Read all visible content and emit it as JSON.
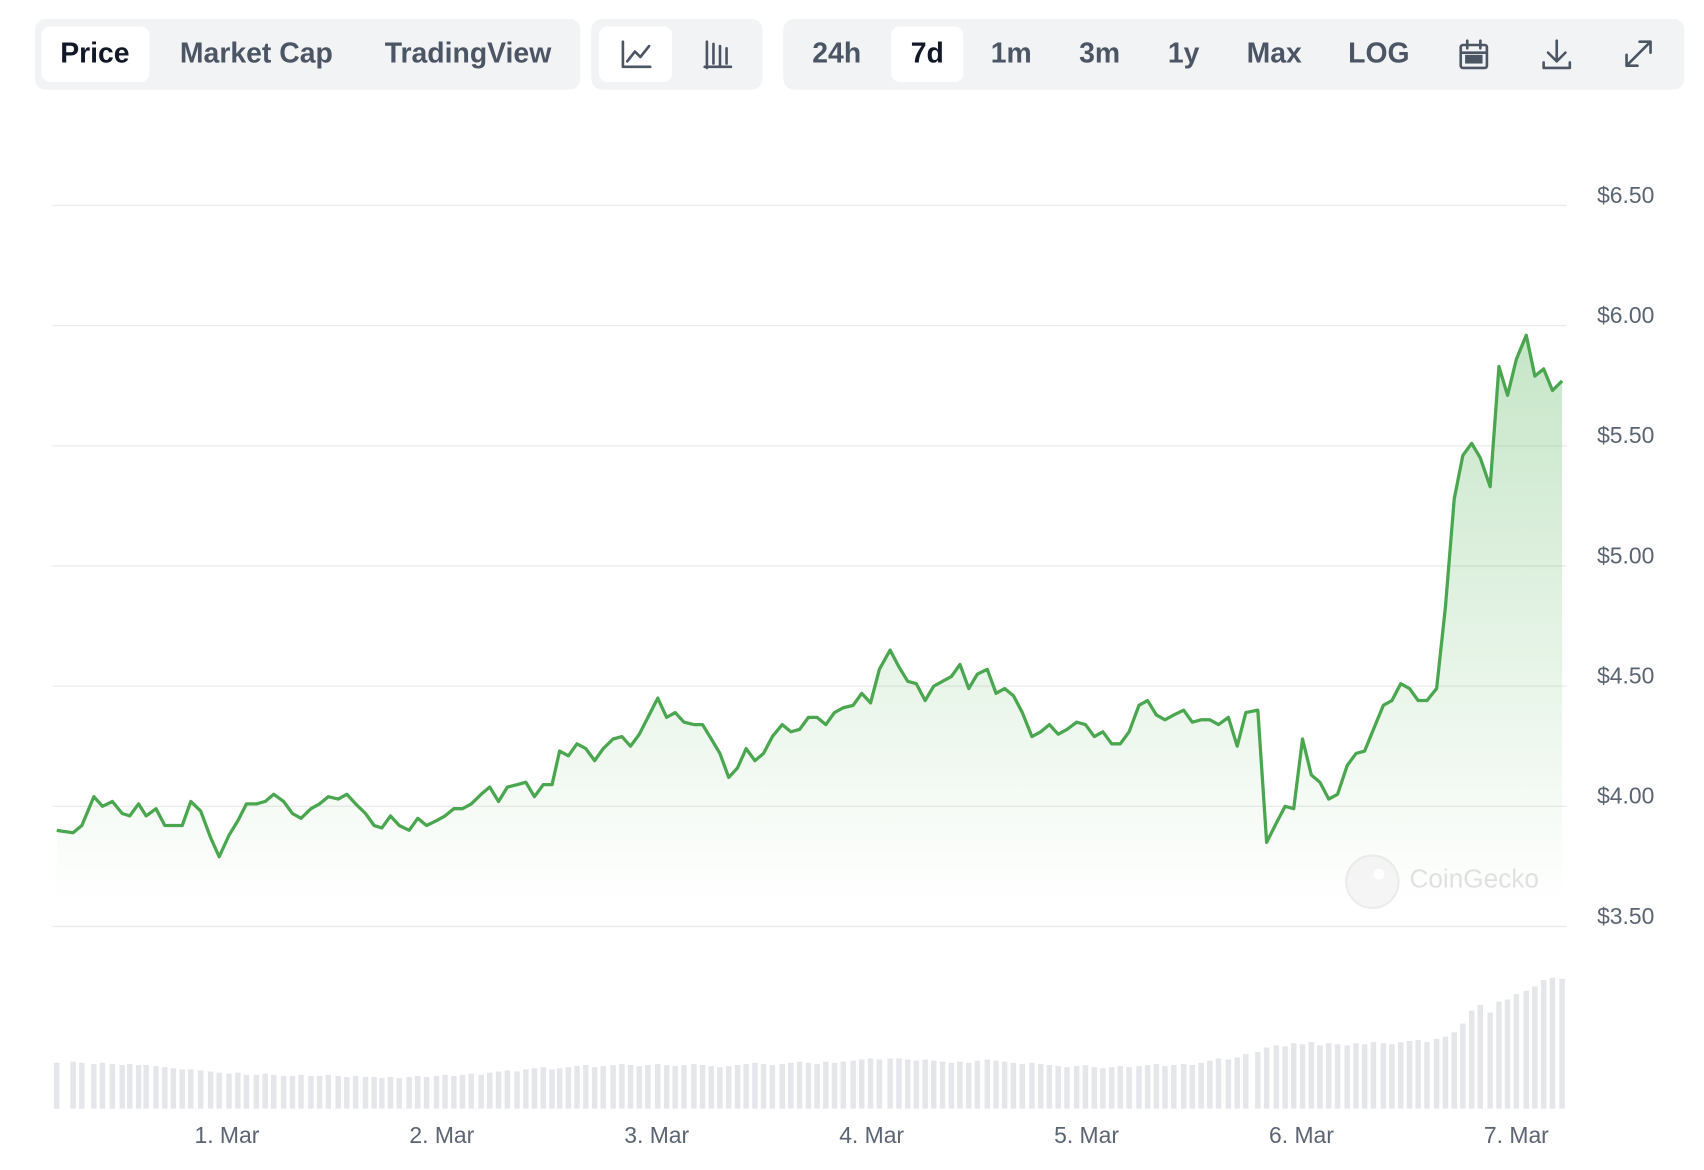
{
  "toolbar": {
    "views": [
      "Price",
      "Market Cap",
      "TradingView"
    ],
    "ranges": [
      "24h",
      "7d",
      "1m",
      "3m",
      "1y",
      "Max",
      "LOG"
    ]
  },
  "watermark": "CoinGecko",
  "chart_data": {
    "type": "line",
    "x": [
      0.208,
      0.284,
      0.325,
      0.381,
      0.421,
      0.467,
      0.513,
      0.548,
      0.589,
      0.624,
      0.67,
      0.711,
      0.751,
      0.792,
      0.832,
      0.878,
      0.924,
      0.964,
      1.01,
      1.051,
      1.091,
      1.137,
      1.178,
      1.218,
      1.264,
      1.305,
      1.345,
      1.391,
      1.431,
      1.472,
      1.518,
      1.558,
      1.599,
      1.645,
      1.685,
      1.721,
      1.761,
      1.802,
      1.848,
      1.888,
      1.929,
      1.975,
      2.015,
      2.056,
      2.096,
      2.137,
      2.183,
      2.223,
      2.264,
      2.305,
      2.35,
      2.391,
      2.431,
      2.472,
      2.513,
      2.548,
      2.589,
      2.629,
      2.67,
      2.711,
      2.751,
      2.797,
      2.838,
      2.878,
      2.919,
      2.959,
      3.005,
      3.046,
      3.086,
      3.127,
      3.173,
      3.213,
      3.254,
      3.294,
      3.335,
      3.376,
      3.416,
      3.457,
      3.497,
      3.538,
      3.584,
      3.624,
      3.665,
      3.706,
      3.746,
      3.787,
      3.827,
      3.868,
      3.914,
      3.954,
      3.995,
      4.036,
      4.086,
      4.127,
      4.168,
      4.208,
      4.249,
      4.289,
      4.33,
      4.371,
      4.411,
      4.452,
      4.492,
      4.538,
      4.579,
      4.619,
      4.66,
      4.701,
      4.746,
      4.787,
      4.827,
      4.868,
      4.909,
      4.954,
      4.995,
      5.036,
      5.076,
      5.117,
      5.157,
      5.198,
      5.244,
      5.284,
      5.325,
      5.365,
      5.406,
      5.452,
      5.492,
      5.533,
      5.574,
      5.614,
      5.66,
      5.701,
      5.741,
      5.797,
      5.838,
      5.883,
      5.924,
      5.964,
      6.005,
      6.046,
      6.086,
      6.127,
      6.168,
      6.213,
      6.254,
      6.294,
      6.335,
      6.381,
      6.421,
      6.462,
      6.503,
      6.543,
      6.584,
      6.629,
      6.67,
      6.711,
      6.751,
      6.792,
      6.832,
      6.878,
      6.919,
      6.959,
      7.0,
      7.046,
      7.086,
      7.127,
      7.168,
      7.213
    ],
    "series": [
      {
        "color": "#4aa64f",
        "values": [
          3.9,
          3.89,
          3.92,
          4.04,
          4.0,
          4.02,
          3.97,
          3.96,
          4.01,
          3.96,
          3.99,
          3.92,
          3.92,
          3.92,
          4.02,
          3.98,
          3.87,
          3.79,
          3.88,
          3.94,
          4.01,
          4.01,
          4.02,
          4.05,
          4.02,
          3.97,
          3.95,
          3.99,
          4.01,
          4.04,
          4.03,
          4.05,
          4.01,
          3.97,
          3.92,
          3.91,
          3.96,
          3.92,
          3.9,
          3.95,
          3.92,
          3.94,
          3.96,
          3.99,
          3.99,
          4.01,
          4.05,
          4.08,
          4.02,
          4.08,
          4.09,
          4.1,
          4.04,
          4.09,
          4.09,
          4.23,
          4.21,
          4.26,
          4.24,
          4.19,
          4.24,
          4.28,
          4.29,
          4.25,
          4.3,
          4.37,
          4.45,
          4.37,
          4.39,
          4.35,
          4.34,
          4.34,
          4.28,
          4.22,
          4.12,
          4.16,
          4.24,
          4.19,
          4.22,
          4.29,
          4.34,
          4.31,
          4.32,
          4.37,
          4.37,
          4.34,
          4.39,
          4.41,
          4.42,
          4.47,
          4.43,
          4.57,
          4.65,
          4.58,
          4.52,
          4.51,
          4.44,
          4.5,
          4.52,
          4.54,
          4.59,
          4.49,
          4.55,
          4.57,
          4.47,
          4.49,
          4.46,
          4.39,
          4.29,
          4.31,
          4.34,
          4.3,
          4.32,
          4.35,
          4.34,
          4.29,
          4.31,
          4.26,
          4.26,
          4.31,
          4.42,
          4.44,
          4.38,
          4.36,
          4.38,
          4.4,
          4.35,
          4.36,
          4.36,
          4.34,
          4.37,
          4.25,
          4.39,
          4.4,
          3.85,
          3.93,
          4.0,
          3.99,
          4.28,
          4.13,
          4.1,
          4.03,
          4.05,
          4.17,
          4.22,
          4.23,
          4.32,
          4.42,
          4.44,
          4.51,
          4.49,
          4.44,
          4.44,
          4.49,
          4.83,
          5.28,
          5.46,
          5.51,
          5.45,
          5.33,
          5.83,
          5.71,
          5.86,
          5.96,
          5.79,
          5.82,
          5.73,
          5.77
        ]
      },
      {
        "type": "bar",
        "axis": "y2",
        "color": "#e4e6ea",
        "values": [
          42,
          43,
          42,
          41,
          42,
          41,
          40,
          41,
          40,
          40,
          39,
          38,
          37,
          36,
          36,
          35,
          34,
          33,
          32,
          33,
          31,
          31,
          32,
          31,
          30,
          30,
          31,
          30,
          30,
          31,
          30,
          29,
          30,
          29,
          29,
          28,
          29,
          28,
          29,
          30,
          29,
          30,
          31,
          30,
          31,
          32,
          31,
          33,
          34,
          35,
          34,
          36,
          37,
          38,
          36,
          37,
          38,
          39,
          40,
          38,
          39,
          40,
          41,
          40,
          39,
          40,
          41,
          40,
          39,
          40,
          41,
          40,
          39,
          38,
          39,
          40,
          41,
          42,
          41,
          40,
          41,
          42,
          43,
          42,
          41,
          43,
          42,
          43,
          44,
          45,
          46,
          45,
          46,
          46,
          45,
          44,
          45,
          44,
          43,
          42,
          43,
          42,
          44,
          45,
          44,
          43,
          42,
          41,
          42,
          41,
          40,
          39,
          38,
          39,
          40,
          38,
          37,
          38,
          39,
          38,
          39,
          40,
          41,
          39,
          40,
          41,
          40,
          42,
          44,
          46,
          45,
          47,
          50,
          52,
          56,
          58,
          57,
          60,
          59,
          61,
          58,
          60,
          59,
          58,
          60,
          59,
          61,
          60,
          59,
          61,
          62,
          63,
          61,
          64,
          66,
          70,
          78,
          90,
          95,
          88,
          98,
          100,
          105,
          108,
          112,
          118,
          120,
          119
        ]
      }
    ],
    "xlim": [
      0.2,
      7.25
    ],
    "xticks": [
      {
        "value": 1,
        "label": "1. Mar"
      },
      {
        "value": 2,
        "label": "2. Mar"
      },
      {
        "value": 3,
        "label": "3. Mar"
      },
      {
        "value": 4,
        "label": "4. Mar"
      },
      {
        "value": 5,
        "label": "5. Mar"
      },
      {
        "value": 6,
        "label": "6. Mar"
      },
      {
        "value": 7,
        "label": "7. Mar"
      }
    ],
    "ylim": [
      3.5,
      6.8
    ],
    "yticks": [
      {
        "value": 3.5,
        "label": "$3.50"
      },
      {
        "value": 4,
        "label": "$4.00"
      },
      {
        "value": 4.5,
        "label": "$4.50"
      },
      {
        "value": 5,
        "label": "$5.00"
      },
      {
        "value": 5.5,
        "label": "$5.50"
      },
      {
        "value": 6,
        "label": "$6.00"
      },
      {
        "value": 6.5,
        "label": "$6.50"
      }
    ],
    "y2lim": [
      0,
      130
    ],
    "grid": true
  }
}
